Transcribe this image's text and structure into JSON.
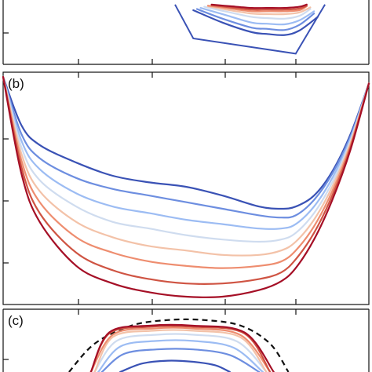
{
  "chart_data": [
    {
      "type": "line",
      "panel_label": "",
      "title": "",
      "xlabel": "",
      "ylabel": "",
      "xlim": [
        0,
        1
      ],
      "ylim": [
        0,
        1
      ],
      "grid": false,
      "legend": "none",
      "series_colors": [
        "#3a52b5",
        "#6d8ee0",
        "#9cbcf3",
        "#cfdcef",
        "#f3c2a8",
        "#ee8d6f",
        "#cf5443",
        "#a50f26"
      ],
      "series": [
        {
          "x": [
            0.52,
            0.6,
            0.68,
            0.72,
            0.77,
            0.81,
            0.86
          ],
          "y": [
            0.82,
            0.6,
            0.43,
            0.4,
            0.38,
            0.46,
            0.7
          ]
        },
        {
          "x": [
            0.53,
            0.6,
            0.68,
            0.72,
            0.77,
            0.81,
            0.85
          ],
          "y": [
            0.84,
            0.67,
            0.51,
            0.49,
            0.47,
            0.56,
            0.76
          ]
        },
        {
          "x": [
            0.54,
            0.61,
            0.68,
            0.72,
            0.77,
            0.81,
            0.85
          ],
          "y": [
            0.86,
            0.73,
            0.6,
            0.58,
            0.57,
            0.64,
            0.8
          ]
        },
        {
          "x": [
            0.55,
            0.62,
            0.68,
            0.72,
            0.77,
            0.81,
            0.84
          ],
          "y": [
            0.88,
            0.78,
            0.7,
            0.68,
            0.67,
            0.72,
            0.84
          ]
        },
        {
          "x": [
            0.56,
            0.62,
            0.68,
            0.72,
            0.77,
            0.81,
            0.84
          ],
          "y": [
            0.89,
            0.82,
            0.76,
            0.75,
            0.75,
            0.78,
            0.87
          ]
        },
        {
          "x": [
            0.56,
            0.62,
            0.68,
            0.72,
            0.77,
            0.81,
            0.83
          ],
          "y": [
            0.9,
            0.85,
            0.8,
            0.8,
            0.8,
            0.82,
            0.89
          ]
        },
        {
          "x": [
            0.57,
            0.62,
            0.68,
            0.72,
            0.77,
            0.81,
            0.83
          ],
          "y": [
            0.91,
            0.87,
            0.83,
            0.83,
            0.83,
            0.85,
            0.9
          ]
        },
        {
          "x": [
            0.57,
            0.62,
            0.68,
            0.72,
            0.77,
            0.81,
            0.83
          ],
          "y": [
            0.92,
            0.89,
            0.86,
            0.86,
            0.86,
            0.88,
            0.92
          ]
        }
      ],
      "frame": {
        "x": [
          0.47,
          0.52,
          0.8,
          0.88
        ],
        "y": [
          0.92,
          0.32,
          0.05,
          0.92
        ]
      }
    },
    {
      "type": "line",
      "panel_label": "(b)",
      "title": "",
      "xlabel": "",
      "ylabel": "",
      "xlim": [
        0,
        1
      ],
      "ylim": [
        0,
        1
      ],
      "grid": false,
      "legend": "none",
      "series_colors": [
        "#3a52b5",
        "#6d8ee0",
        "#9cbcf3",
        "#cfdcef",
        "#f3c2a8",
        "#ee8d6f",
        "#cf5443",
        "#a50f26"
      ],
      "series": [
        {
          "x": [
            0.0,
            0.05,
            0.1,
            0.2,
            0.3,
            0.4,
            0.5,
            0.6,
            0.7,
            0.76,
            0.8,
            0.85,
            0.9,
            0.95,
            1.0
          ],
          "y": [
            1.0,
            0.78,
            0.69,
            0.61,
            0.55,
            0.52,
            0.5,
            0.46,
            0.41,
            0.4,
            0.41,
            0.46,
            0.57,
            0.74,
            0.97
          ]
        },
        {
          "x": [
            0.0,
            0.05,
            0.1,
            0.2,
            0.3,
            0.4,
            0.5,
            0.6,
            0.7,
            0.76,
            0.8,
            0.85,
            0.9,
            0.95,
            1.0
          ],
          "y": [
            1.0,
            0.74,
            0.63,
            0.54,
            0.49,
            0.46,
            0.43,
            0.4,
            0.37,
            0.36,
            0.37,
            0.44,
            0.56,
            0.73,
            0.97
          ]
        },
        {
          "x": [
            0.0,
            0.05,
            0.1,
            0.2,
            0.3,
            0.4,
            0.5,
            0.6,
            0.7,
            0.76,
            0.8,
            0.85,
            0.9,
            0.95,
            1.0
          ],
          "y": [
            1.0,
            0.71,
            0.58,
            0.47,
            0.41,
            0.38,
            0.35,
            0.33,
            0.31,
            0.31,
            0.33,
            0.41,
            0.54,
            0.72,
            0.97
          ]
        },
        {
          "x": [
            0.0,
            0.05,
            0.1,
            0.2,
            0.3,
            0.4,
            0.5,
            0.6,
            0.7,
            0.76,
            0.8,
            0.85,
            0.9,
            0.95,
            1.0
          ],
          "y": [
            1.0,
            0.68,
            0.53,
            0.41,
            0.34,
            0.31,
            0.28,
            0.26,
            0.25,
            0.26,
            0.29,
            0.38,
            0.52,
            0.71,
            0.97
          ]
        },
        {
          "x": [
            0.0,
            0.05,
            0.1,
            0.2,
            0.3,
            0.4,
            0.5,
            0.6,
            0.7,
            0.76,
            0.8,
            0.85,
            0.9,
            0.95,
            1.0
          ],
          "y": [
            1.0,
            0.65,
            0.48,
            0.34,
            0.27,
            0.23,
            0.21,
            0.19,
            0.19,
            0.21,
            0.25,
            0.35,
            0.5,
            0.7,
            0.97
          ]
        },
        {
          "x": [
            0.0,
            0.05,
            0.1,
            0.2,
            0.3,
            0.4,
            0.5,
            0.6,
            0.7,
            0.76,
            0.8,
            0.85,
            0.9,
            0.95,
            1.0
          ],
          "y": [
            1.0,
            0.62,
            0.43,
            0.27,
            0.2,
            0.16,
            0.14,
            0.13,
            0.14,
            0.16,
            0.21,
            0.32,
            0.48,
            0.69,
            0.97
          ]
        },
        {
          "x": [
            0.0,
            0.05,
            0.1,
            0.2,
            0.3,
            0.4,
            0.5,
            0.6,
            0.7,
            0.76,
            0.8,
            0.85,
            0.9,
            0.95,
            1.0
          ],
          "y": [
            1.0,
            0.59,
            0.38,
            0.2,
            0.12,
            0.08,
            0.06,
            0.06,
            0.08,
            0.11,
            0.17,
            0.29,
            0.46,
            0.68,
            0.97
          ]
        },
        {
          "x": [
            0.0,
            0.05,
            0.1,
            0.2,
            0.3,
            0.4,
            0.5,
            0.6,
            0.7,
            0.76,
            0.8,
            0.85,
            0.9,
            0.95,
            1.0
          ],
          "y": [
            1.0,
            0.56,
            0.34,
            0.14,
            0.06,
            0.02,
            0.0,
            0.0,
            0.03,
            0.07,
            0.13,
            0.26,
            0.44,
            0.67,
            0.97
          ]
        }
      ]
    },
    {
      "type": "line",
      "panel_label": "(c)",
      "title": "",
      "xlabel": "",
      "ylabel": "",
      "xlim": [
        0,
        1
      ],
      "ylim": [
        0,
        1
      ],
      "grid": false,
      "legend": "none",
      "dashed_x": [
        0.18,
        0.25,
        0.35,
        0.45,
        0.55,
        0.65,
        0.73,
        0.78
      ],
      "dashed_y": [
        0.0,
        0.5,
        0.82,
        0.92,
        0.92,
        0.82,
        0.5,
        0.0
      ],
      "series_colors": [
        "#3a52b5",
        "#6d8ee0",
        "#9cbcf3",
        "#cfdcef",
        "#f3c2a8",
        "#ee8d6f",
        "#cf5443",
        "#a50f26"
      ],
      "series": [
        {
          "x": [
            0.32,
            0.38,
            0.45,
            0.52,
            0.58,
            0.62
          ],
          "y": [
            0.0,
            0.15,
            0.2,
            0.18,
            0.12,
            0.0
          ]
        },
        {
          "x": [
            0.27,
            0.33,
            0.42,
            0.52,
            0.62,
            0.7
          ],
          "y": [
            0.0,
            0.32,
            0.4,
            0.4,
            0.3,
            0.0
          ]
        },
        {
          "x": [
            0.26,
            0.32,
            0.42,
            0.52,
            0.63,
            0.71
          ],
          "y": [
            0.0,
            0.45,
            0.55,
            0.55,
            0.43,
            0.0
          ]
        },
        {
          "x": [
            0.25,
            0.31,
            0.42,
            0.52,
            0.64,
            0.72
          ],
          "y": [
            0.0,
            0.55,
            0.66,
            0.66,
            0.54,
            0.0
          ]
        },
        {
          "x": [
            0.25,
            0.3,
            0.41,
            0.52,
            0.65,
            0.72
          ],
          "y": [
            0.0,
            0.62,
            0.73,
            0.73,
            0.61,
            0.0
          ]
        },
        {
          "x": [
            0.24,
            0.3,
            0.41,
            0.52,
            0.65,
            0.73
          ],
          "y": [
            0.0,
            0.66,
            0.77,
            0.77,
            0.65,
            0.0
          ]
        },
        {
          "x": [
            0.24,
            0.29,
            0.4,
            0.52,
            0.66,
            0.73
          ],
          "y": [
            0.0,
            0.68,
            0.8,
            0.8,
            0.68,
            0.0
          ]
        },
        {
          "x": [
            0.24,
            0.29,
            0.4,
            0.52,
            0.66,
            0.74
          ],
          "y": [
            0.0,
            0.7,
            0.82,
            0.82,
            0.7,
            0.0
          ]
        }
      ]
    }
  ]
}
